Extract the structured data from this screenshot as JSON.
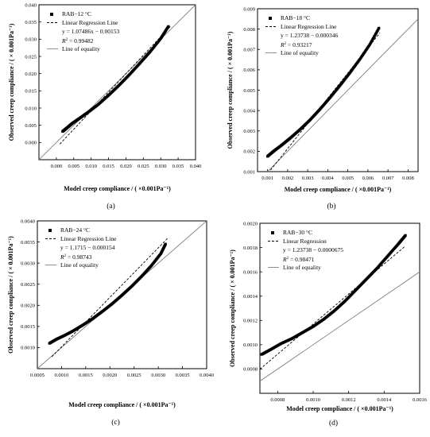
{
  "colors": {
    "axis": "#000000",
    "data": "#000000",
    "equality": "#808080",
    "regression": "#000000"
  },
  "chart_data": [
    {
      "type": "scatter",
      "panel_label": "(a)",
      "xlabel": "Model creep compliance / ( ×0.001Pa⁻¹)",
      "ylabel": "Observed creep compliance / ( × 0.001Pa⁻¹)",
      "xlim": [
        -0.005,
        0.04
      ],
      "ylim": [
        -0.005,
        0.04
      ],
      "xticks": [
        "0.000",
        "0.005",
        "0.010",
        "0.015",
        "0.020",
        "0.025",
        "0.030",
        "0.035",
        "0.040"
      ],
      "yticks": [
        "0.000",
        "0.005",
        "0.010",
        "0.015",
        "0.020",
        "0.025",
        "0.030",
        "0.035",
        "0.040"
      ],
      "tick_values": [
        0.0,
        0.005,
        0.01,
        0.015,
        0.02,
        0.025,
        0.03,
        0.035,
        0.04
      ],
      "legend": {
        "series_label": "RAB−12 °C",
        "regression_label": "Linear Regression Line",
        "equation": "y = 1.07486x − 0.00153",
        "r2_label": "R",
        "r2_value": " = 0.99482",
        "equality_label": "Line of equality"
      },
      "series": {
        "x": [
          0.0018,
          0.003,
          0.0045,
          0.0065,
          0.009,
          0.012,
          0.015,
          0.018,
          0.021,
          0.024,
          0.027,
          0.03,
          0.0322
        ],
        "y": [
          0.0032,
          0.0042,
          0.0055,
          0.0069,
          0.0087,
          0.011,
          0.0137,
          0.0166,
          0.0197,
          0.023,
          0.0264,
          0.0302,
          0.0337
        ]
      },
      "regression": {
        "slope": 1.07486,
        "intercept": -0.00153,
        "x_range": [
          0.001,
          0.033
        ]
      },
      "equality_range": [
        -0.005,
        0.04
      ]
    },
    {
      "type": "scatter",
      "panel_label": "(b)",
      "xlabel": "Model creep compliance / ( ×0.001Pa⁻¹)",
      "ylabel": "Observed creep compliance / ( × 0.001Pa⁻¹)",
      "xlim": [
        0.0005,
        0.0085
      ],
      "ylim": [
        0.001,
        0.009
      ],
      "xticks": [
        "0.001",
        "0.002",
        "0.003",
        "0.004",
        "0.005",
        "0.006",
        "0.007",
        "0.008"
      ],
      "xtick_values": [
        0.001,
        0.002,
        0.003,
        0.004,
        0.005,
        0.006,
        0.007,
        0.008
      ],
      "yticks": [
        "0.001",
        "0.002",
        "0.003",
        "0.004",
        "0.005",
        "0.006",
        "0.007",
        "0.008",
        "0.009"
      ],
      "ytick_values": [
        0.001,
        0.002,
        0.003,
        0.004,
        0.005,
        0.006,
        0.007,
        0.008,
        0.009
      ],
      "legend": {
        "series_label": "RAB−18 °C",
        "regression_label": "Linear Regression Line",
        "equation": "y = 1.23738 − 0.000346",
        "r2_label": "R",
        "r2_value": " = 0.93217",
        "equality_label": "Line of equality"
      },
      "series": {
        "x": [
          0.001,
          0.0013,
          0.0017,
          0.0021,
          0.0026,
          0.0031,
          0.0036,
          0.0041,
          0.0046,
          0.0051,
          0.0056,
          0.0061,
          0.00655
        ],
        "y": [
          0.00175,
          0.002,
          0.0023,
          0.00262,
          0.00305,
          0.00352,
          0.00405,
          0.00462,
          0.00522,
          0.00585,
          0.00652,
          0.00725,
          0.00805
        ]
      },
      "regression": {
        "slope": 1.23738,
        "intercept": -0.000346,
        "x_range": [
          0.0009,
          0.0066
        ]
      },
      "equality_range": [
        0.0005,
        0.0085
      ]
    },
    {
      "type": "scatter",
      "panel_label": "(c)",
      "xlabel": "Model creep compliance / ( ×0.001Pa⁻¹)",
      "ylabel": "Observed creep compliance / ( × 0.001Pa⁻¹)",
      "xlim": [
        0.0005,
        0.004
      ],
      "ylim": [
        0.0005,
        0.004
      ],
      "xticks": [
        "0.0005",
        "0.0010",
        "0.0015",
        "0.0020",
        "0.0025",
        "0.0030",
        "0.0035",
        "0.0040"
      ],
      "xtick_values": [
        0.0005,
        0.001,
        0.0015,
        0.002,
        0.0025,
        0.003,
        0.0035,
        0.004
      ],
      "yticks": [
        "0.0010",
        "0.0015",
        "0.0020",
        "0.0025",
        "0.0030",
        "0.0035",
        "0.0040"
      ],
      "ytick_values": [
        0.001,
        0.0015,
        0.002,
        0.0025,
        0.003,
        0.0035,
        0.004
      ],
      "legend": {
        "series_label": "RAB−24 °C",
        "regression_label": "Linear Regression Line",
        "equation": "y = 1.1715 − 0.000154",
        "r2_label": "R",
        "r2_value": " = 0.98743",
        "equality_label": "Line of equality"
      },
      "series": {
        "x": [
          0.00075,
          0.0009,
          0.00105,
          0.00125,
          0.00145,
          0.00165,
          0.00185,
          0.00205,
          0.00225,
          0.00245,
          0.00265,
          0.00285,
          0.00305,
          0.00315
        ],
        "y": [
          0.0011,
          0.0012,
          0.00128,
          0.0014,
          0.00154,
          0.00169,
          0.00186,
          0.00204,
          0.00224,
          0.00245,
          0.00268,
          0.00293,
          0.00322,
          0.00345
        ]
      },
      "regression": {
        "slope": 1.1715,
        "intercept": -0.000154,
        "x_range": [
          0.0008,
          0.0032
        ]
      },
      "equality_range": [
        0.0005,
        0.004
      ]
    },
    {
      "type": "scatter",
      "panel_label": "(d)",
      "xlabel": "Model creep compliance / ( ×0.001Pa⁻¹)",
      "ylabel": "Observed creep compliance / ( × 0.001Pa⁻¹)",
      "xlim": [
        0.0007,
        0.0016
      ],
      "ylim": [
        0.0006,
        0.002
      ],
      "xticks": [
        "0.0008",
        "0.0010",
        "0.0012",
        "0.0014",
        "0.0016"
      ],
      "xtick_values": [
        0.0008,
        0.001,
        0.0012,
        0.0014,
        0.0016
      ],
      "yticks": [
        "0.0008",
        "0.0010",
        "0.0012",
        "0.0014",
        "0.0016",
        "0.0018",
        "0.0020"
      ],
      "ytick_values": [
        0.0008,
        0.001,
        0.0012,
        0.0014,
        0.0016,
        0.0018,
        0.002
      ],
      "legend": {
        "series_label": "RAB−30 °C",
        "regression_label": "Linear Regression",
        "equation": "y = 1.23738 − 0.0000675",
        "r2_label": "R",
        "r2_value": " = 0.98471",
        "equality_label": "Line of equality"
      },
      "series": {
        "x": [
          0.00071,
          0.00076,
          0.00082,
          0.00088,
          0.00094,
          0.001,
          0.00106,
          0.00112,
          0.00118,
          0.00124,
          0.0013,
          0.00136,
          0.00142,
          0.00148,
          0.00152
        ],
        "y": [
          0.00092,
          0.00096,
          0.00101,
          0.00105,
          0.0011,
          0.00115,
          0.00121,
          0.00128,
          0.00136,
          0.00145,
          0.00154,
          0.00163,
          0.00173,
          0.00183,
          0.0019
        ]
      },
      "regression": {
        "slope": 1.23738,
        "intercept": -6.75e-05,
        "x_range": [
          0.0007,
          0.00152
        ]
      },
      "equality_range": [
        0.0007,
        0.0016
      ]
    }
  ]
}
